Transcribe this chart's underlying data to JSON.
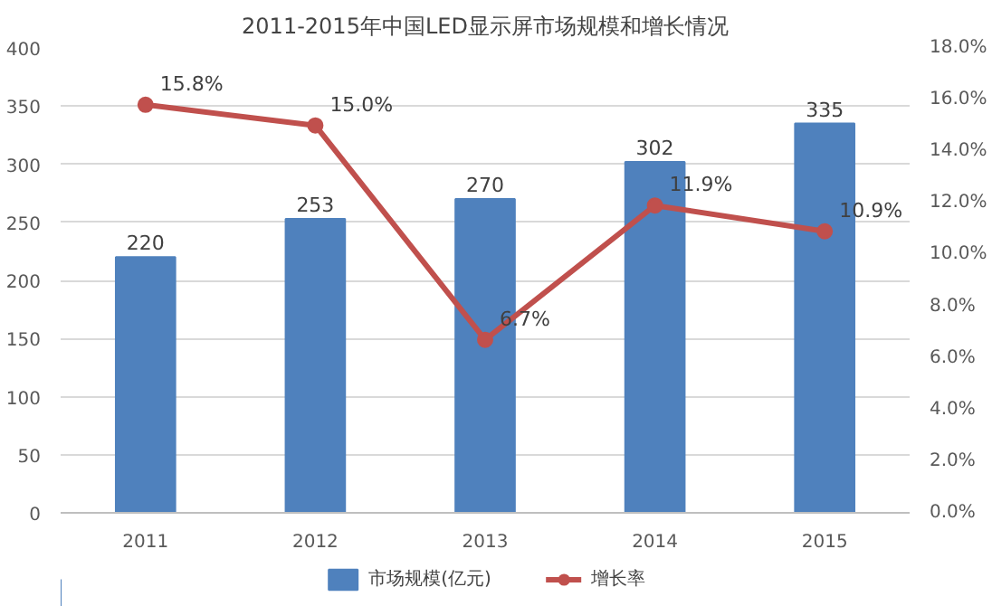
{
  "chart_data": {
    "type": "bar",
    "title": "2011-2015年中国LED显示屏市场规模和增长情况",
    "categories": [
      "2011",
      "2012",
      "2013",
      "2014",
      "2015"
    ],
    "series": [
      {
        "name": "市场规模(亿元)",
        "color": "#4f81bd",
        "values": [
          220,
          253,
          270,
          302,
          335
        ],
        "value_labels": [
          "220",
          "253",
          "270",
          "302",
          "335"
        ]
      },
      {
        "name": "增长率",
        "type": "line",
        "axis": "y2",
        "color": "#c0504d",
        "marker": "circle",
        "values": [
          15.8,
          15.0,
          6.7,
          11.9,
          10.9
        ],
        "value_labels": [
          "15.8%",
          "15.0%",
          "6.7%",
          "11.9%",
          "10.9%"
        ]
      }
    ],
    "ylim": [
      0,
      400
    ],
    "yticks": [
      0,
      50,
      100,
      150,
      200,
      250,
      300,
      350,
      400
    ],
    "y2lim": [
      0,
      18
    ],
    "y2ticks": [
      {
        "value": 0,
        "label": "0.0%"
      },
      {
        "value": 2,
        "label": "2.0%"
      },
      {
        "value": 4,
        "label": "4.0%"
      },
      {
        "value": 6,
        "label": "6.0%"
      },
      {
        "value": 8,
        "label": "8.0%"
      },
      {
        "value": 10,
        "label": "10.0%"
      },
      {
        "value": 12,
        "label": "12.0%"
      },
      {
        "value": 14,
        "label": "14.0%"
      },
      {
        "value": 16,
        "label": "16.0%"
      },
      {
        "value": 18,
        "label": "18.0%"
      }
    ],
    "grid": "y",
    "legend": "bottom"
  }
}
